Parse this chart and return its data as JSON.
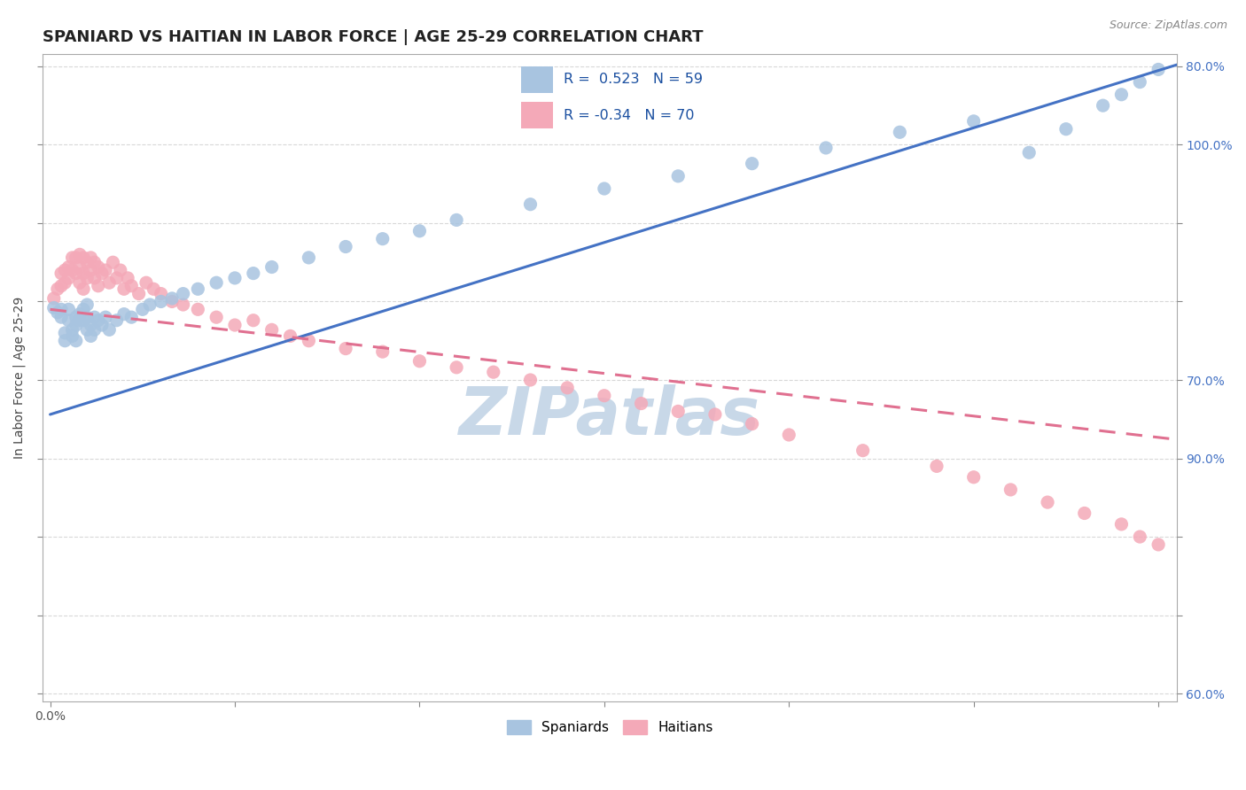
{
  "title": "SPANIARD VS HAITIAN IN LABOR FORCE | AGE 25-29 CORRELATION CHART",
  "source": "Source: ZipAtlas.com",
  "ylabel": "In Labor Force | Age 25-29",
  "xlim": [
    -0.002,
    0.305
  ],
  "ylim": [
    0.595,
    1.008
  ],
  "spaniards_R": 0.523,
  "spaniards_N": 59,
  "haitians_R": -0.34,
  "haitians_N": 70,
  "spaniard_color": "#a8c4e0",
  "haitian_color": "#f4a9b8",
  "trend_spaniard_color": "#4472c4",
  "trend_haitian_color": "#e07090",
  "watermark": "ZIPatlas",
  "watermark_color": "#c8d8e8",
  "background_color": "#ffffff",
  "grid_color": "#d8d8d8",
  "title_fontsize": 13,
  "axis_label_fontsize": 10,
  "tick_fontsize": 10,
  "right_tick_color": "#4472c4",
  "spaniard_x": [
    0.001,
    0.002,
    0.003,
    0.003,
    0.004,
    0.004,
    0.005,
    0.005,
    0.006,
    0.006,
    0.007,
    0.007,
    0.007,
    0.008,
    0.008,
    0.009,
    0.009,
    0.01,
    0.01,
    0.01,
    0.011,
    0.011,
    0.012,
    0.012,
    0.013,
    0.014,
    0.015,
    0.016,
    0.018,
    0.02,
    0.022,
    0.025,
    0.027,
    0.03,
    0.033,
    0.036,
    0.04,
    0.045,
    0.05,
    0.055,
    0.06,
    0.07,
    0.08,
    0.09,
    0.1,
    0.11,
    0.13,
    0.15,
    0.17,
    0.19,
    0.21,
    0.23,
    0.25,
    0.265,
    0.275,
    0.285,
    0.29,
    0.295,
    0.3
  ],
  "spaniard_y": [
    0.846,
    0.843,
    0.845,
    0.84,
    0.83,
    0.825,
    0.845,
    0.838,
    0.832,
    0.828,
    0.84,
    0.835,
    0.825,
    0.842,
    0.838,
    0.845,
    0.838,
    0.848,
    0.84,
    0.832,
    0.835,
    0.828,
    0.84,
    0.832,
    0.838,
    0.835,
    0.84,
    0.832,
    0.838,
    0.842,
    0.84,
    0.845,
    0.848,
    0.85,
    0.852,
    0.855,
    0.858,
    0.862,
    0.865,
    0.868,
    0.872,
    0.878,
    0.885,
    0.89,
    0.895,
    0.902,
    0.912,
    0.922,
    0.93,
    0.938,
    0.948,
    0.958,
    0.965,
    0.945,
    0.96,
    0.975,
    0.982,
    0.99,
    0.998
  ],
  "haitian_x": [
    0.001,
    0.002,
    0.003,
    0.003,
    0.004,
    0.004,
    0.005,
    0.005,
    0.006,
    0.006,
    0.007,
    0.007,
    0.008,
    0.008,
    0.008,
    0.009,
    0.009,
    0.009,
    0.01,
    0.01,
    0.011,
    0.011,
    0.012,
    0.012,
    0.013,
    0.013,
    0.014,
    0.015,
    0.016,
    0.017,
    0.018,
    0.019,
    0.02,
    0.021,
    0.022,
    0.024,
    0.026,
    0.028,
    0.03,
    0.033,
    0.036,
    0.04,
    0.045,
    0.05,
    0.055,
    0.06,
    0.065,
    0.07,
    0.08,
    0.09,
    0.1,
    0.11,
    0.12,
    0.13,
    0.14,
    0.15,
    0.16,
    0.17,
    0.18,
    0.19,
    0.2,
    0.22,
    0.24,
    0.25,
    0.26,
    0.27,
    0.28,
    0.29,
    0.295,
    0.3
  ],
  "haitian_y": [
    0.852,
    0.858,
    0.86,
    0.868,
    0.87,
    0.862,
    0.872,
    0.865,
    0.878,
    0.87,
    0.878,
    0.868,
    0.88,
    0.872,
    0.862,
    0.878,
    0.868,
    0.858,
    0.875,
    0.865,
    0.87,
    0.878,
    0.865,
    0.875,
    0.872,
    0.86,
    0.868,
    0.87,
    0.862,
    0.875,
    0.865,
    0.87,
    0.858,
    0.865,
    0.86,
    0.855,
    0.862,
    0.858,
    0.855,
    0.85,
    0.848,
    0.845,
    0.84,
    0.835,
    0.838,
    0.832,
    0.828,
    0.825,
    0.82,
    0.818,
    0.812,
    0.808,
    0.805,
    0.8,
    0.795,
    0.79,
    0.785,
    0.78,
    0.778,
    0.772,
    0.765,
    0.755,
    0.745,
    0.738,
    0.73,
    0.722,
    0.715,
    0.708,
    0.7,
    0.695
  ],
  "trend_s_x0": 0.0,
  "trend_s_y0": 0.778,
  "trend_s_x1": 0.305,
  "trend_s_y1": 1.001,
  "trend_h_x0": 0.0,
  "trend_h_y0": 0.845,
  "trend_h_x1": 0.305,
  "trend_h_y1": 0.762
}
